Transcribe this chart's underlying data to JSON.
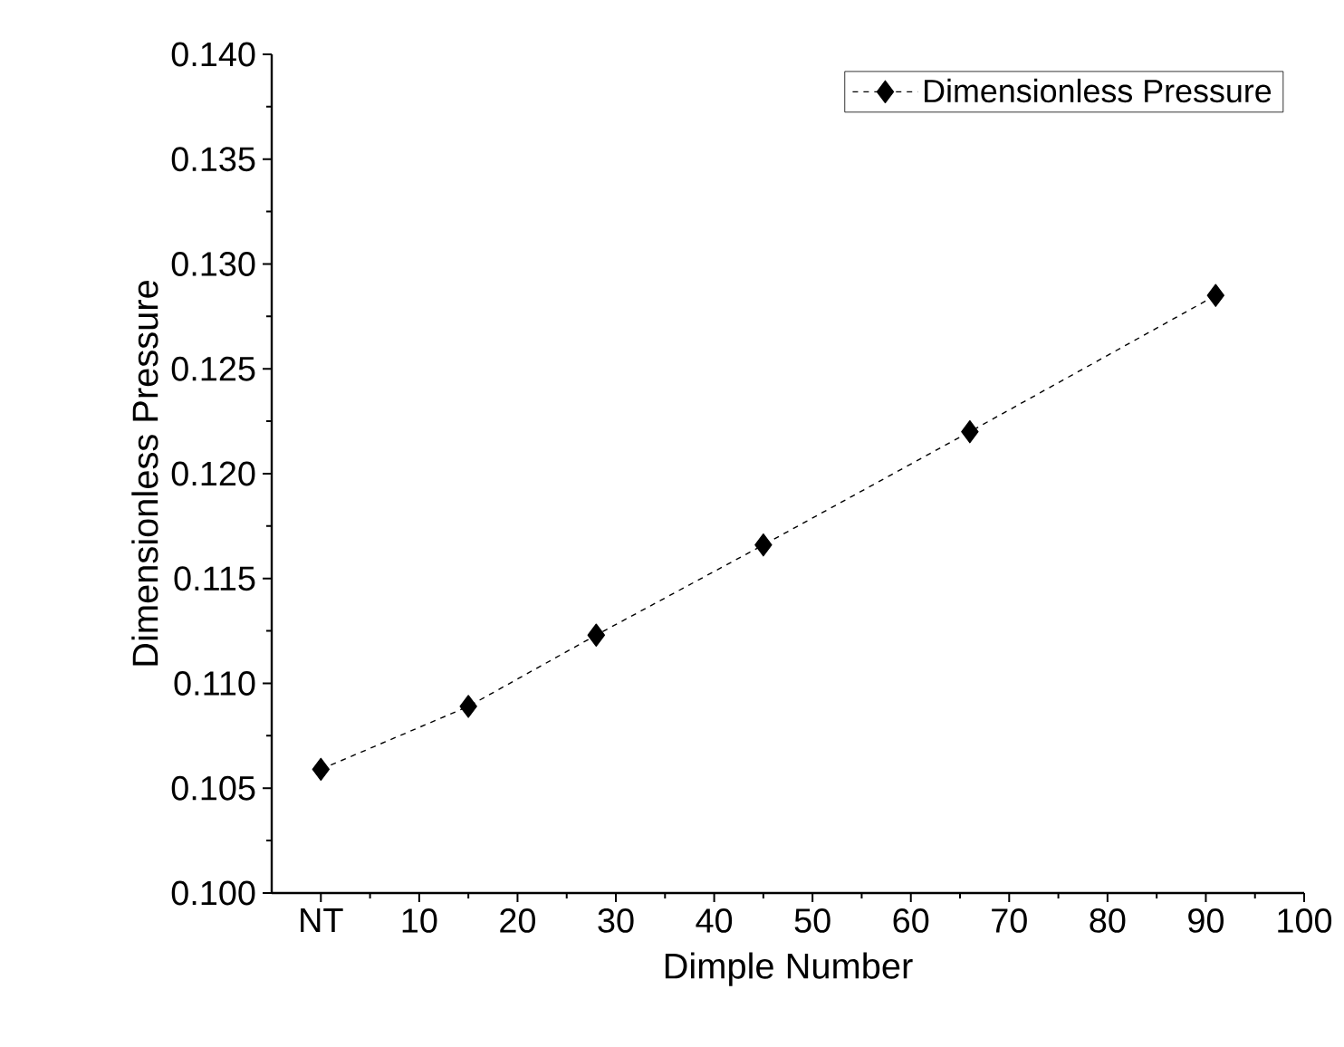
{
  "chart_data": {
    "type": "line",
    "xlabel": "Dimple Number",
    "ylabel": "Dimensionless Pressure",
    "x": [
      0,
      15,
      28,
      45,
      66,
      91
    ],
    "series": [
      {
        "name": "Dimensionless Pressure",
        "color": "#000000",
        "values": [
          0.1059,
          0.1089,
          0.1123,
          0.1166,
          0.122,
          0.1285
        ]
      }
    ],
    "xlim": [
      -5,
      100
    ],
    "xticks": [
      {
        "value": 0,
        "label": "NT"
      },
      10,
      20,
      30,
      40,
      50,
      60,
      70,
      80,
      90,
      100
    ],
    "ylim": [
      0.1,
      0.14
    ],
    "yticks": [
      {
        "value": 0.1,
        "label": "0.100"
      },
      {
        "value": 0.105,
        "label": "0.105"
      },
      {
        "value": 0.11,
        "label": "0.110"
      },
      {
        "value": 0.115,
        "label": "0.115"
      },
      {
        "value": 0.12,
        "label": "0.120"
      },
      {
        "value": 0.125,
        "label": "0.125"
      },
      {
        "value": 0.13,
        "label": "0.130"
      },
      {
        "value": 0.135,
        "label": "0.135"
      },
      {
        "value": 0.14,
        "label": "0.140"
      }
    ],
    "marker": "diamond",
    "line_style": "dashed",
    "legend": "top right",
    "grid": false
  }
}
